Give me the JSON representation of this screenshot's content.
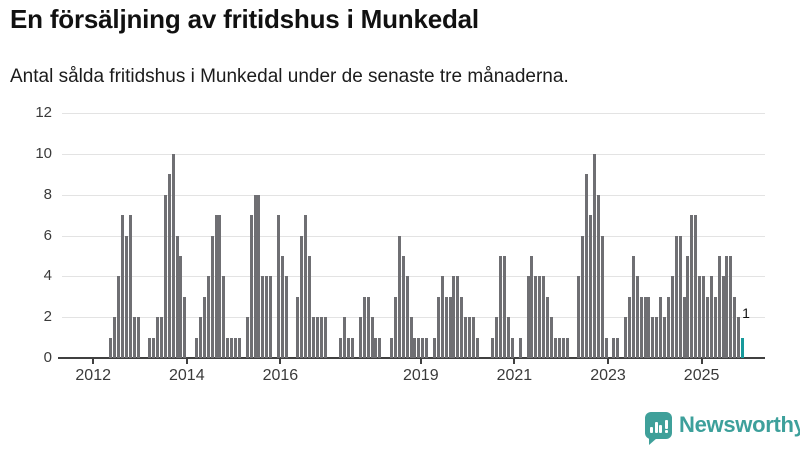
{
  "header": {
    "title": "En försäljning av fritidshus i Munkedal",
    "subtitle": "Antal sålda fritidshus i Munkedal under de senaste tre månaderna."
  },
  "chart_data": {
    "type": "bar",
    "title": "En försäljning av fritidshus i Munkedal",
    "subtitle": "Antal sålda fritidshus i Munkedal under de senaste tre månaderna.",
    "start_month": "2012-01",
    "end_month": "2025-11",
    "values": [
      0,
      0,
      0,
      0,
      1,
      2,
      4,
      7,
      6,
      7,
      2,
      2,
      0,
      0,
      1,
      1,
      2,
      2,
      8,
      9,
      10,
      6,
      5,
      3,
      0,
      0,
      1,
      2,
      3,
      4,
      6,
      7,
      7,
      4,
      1,
      1,
      1,
      1,
      0,
      2,
      7,
      8,
      8,
      4,
      4,
      4,
      0,
      7,
      5,
      4,
      0,
      0,
      3,
      6,
      7,
      5,
      2,
      2,
      2,
      2,
      0,
      0,
      0,
      1,
      2,
      1,
      1,
      0,
      2,
      3,
      3,
      2,
      1,
      1,
      0,
      0,
      1,
      3,
      6,
      5,
      4,
      2,
      1,
      1,
      1,
      1,
      0,
      1,
      3,
      4,
      3,
      3,
      4,
      4,
      3,
      2,
      2,
      2,
      1,
      0,
      0,
      0,
      1,
      2,
      5,
      5,
      2,
      1,
      0,
      1,
      0,
      4,
      5,
      4,
      4,
      4,
      3,
      2,
      1,
      1,
      1,
      1,
      0,
      0,
      4,
      6,
      9,
      7,
      10,
      8,
      6,
      1,
      0,
      1,
      1,
      0,
      2,
      3,
      5,
      4,
      3,
      3,
      3,
      2,
      2,
      3,
      2,
      3,
      4,
      6,
      6,
      3,
      5,
      7,
      7,
      4,
      4,
      3,
      4,
      3,
      5,
      4,
      5,
      5,
      3,
      2,
      1
    ],
    "highlight_last": {
      "value": 1,
      "label": "1",
      "color": "#17999b"
    },
    "bar_color": "#6f6f73",
    "y_axis": {
      "ticks": [
        0,
        2,
        4,
        6,
        8,
        10,
        12
      ],
      "min": 0,
      "max": 12,
      "grid": true
    },
    "x_axis": {
      "tick_labels": [
        "2012",
        "2014",
        "2016",
        "2019",
        "2021",
        "2023",
        "2025"
      ],
      "tick_month_indices": [
        0,
        24,
        48,
        84,
        108,
        132,
        156
      ]
    },
    "legend": null
  },
  "branding": {
    "logo_text": "Newsworthy",
    "logo_color": "#3da09b",
    "logo_icon": "bar-chart-speech-bubble-icon"
  }
}
